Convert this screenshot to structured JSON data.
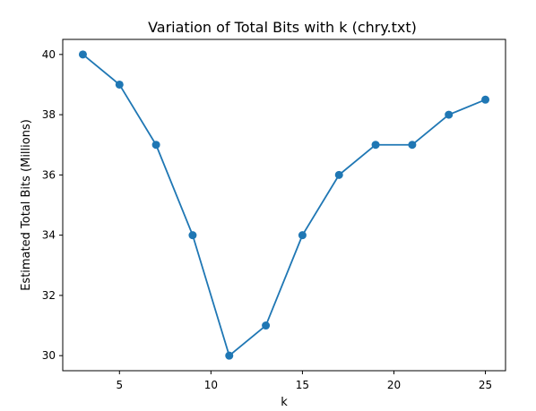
{
  "chart_data": {
    "type": "line",
    "title": "Variation of Total Bits with k (chry.txt)",
    "xlabel": "k",
    "ylabel": "Estimated Total Bits (Millions)",
    "x": [
      3,
      5,
      7,
      9,
      11,
      13,
      15,
      17,
      19,
      21,
      23,
      25
    ],
    "series": [
      {
        "values": [
          40,
          39,
          37,
          34,
          30,
          31,
          34,
          36,
          37,
          37,
          38,
          38.5
        ],
        "color": "#1f77b4",
        "marker": "circle"
      }
    ],
    "xlim": [
      1.9,
      26.1
    ],
    "ylim": [
      29.5,
      40.5
    ],
    "xticks": [
      5,
      10,
      15,
      20,
      25
    ],
    "yticks": [
      30,
      32,
      34,
      36,
      38,
      40
    ],
    "grid": false,
    "legend": "none"
  }
}
